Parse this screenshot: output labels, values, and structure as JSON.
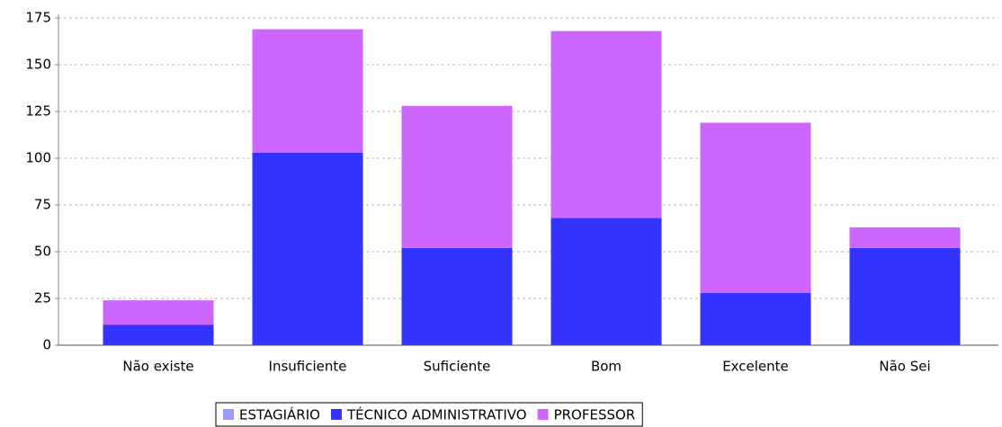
{
  "chart_data": {
    "type": "stacked_bar",
    "categories": [
      "Não existe",
      "Insuficiente",
      "Suficiente",
      "Bom",
      "Excelente",
      "Não Sei"
    ],
    "series": [
      {
        "name": "ESTAGIÁRIO",
        "color": "#9999ff",
        "values": [
          0,
          0,
          0,
          0,
          0,
          0
        ]
      },
      {
        "name": "TÉCNICO ADMINISTRATIVO",
        "color": "#3333ff",
        "values": [
          11,
          103,
          52,
          68,
          28,
          52
        ]
      },
      {
        "name": "PROFESSOR",
        "color": "#cc66ff",
        "values": [
          13,
          66,
          76,
          100,
          91,
          11
        ]
      }
    ],
    "ylim": [
      0,
      175
    ],
    "yticks": [
      0,
      25,
      50,
      75,
      100,
      125,
      150,
      175
    ],
    "grid": true,
    "legend": "bottom"
  }
}
